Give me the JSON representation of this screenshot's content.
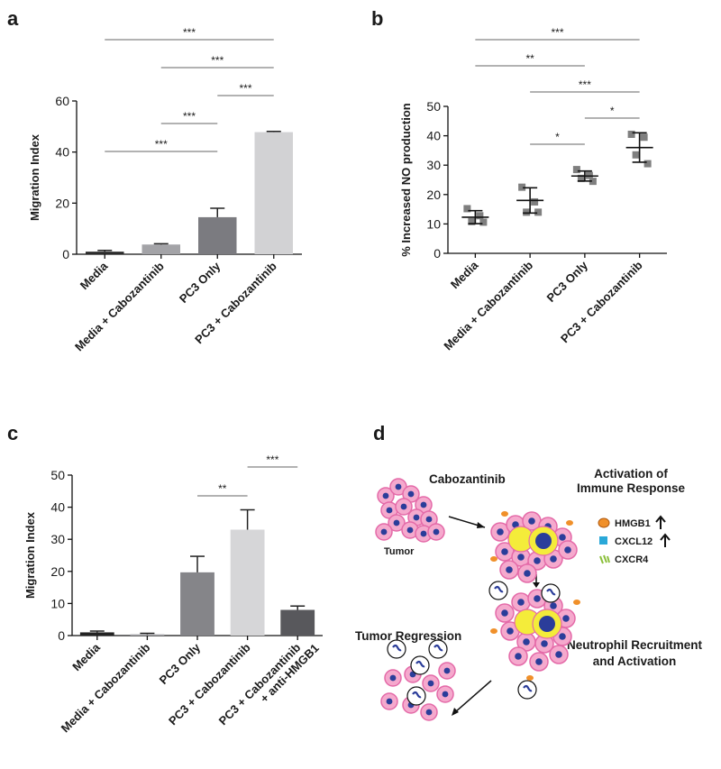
{
  "chart_data": [
    {
      "type": "bar",
      "label": "a",
      "ylabel": "Migration Index",
      "categories": [
        "Media",
        "Media + Cabozantinib",
        "PC3 Only",
        "PC3 + Cabozantinib"
      ],
      "values": [
        1,
        3.8,
        14.5,
        47.8
      ],
      "errors": [
        0.5,
        0.3,
        3.5,
        0.3
      ],
      "colors": [
        "#2b2b2b",
        "#a3a3a7",
        "#7b7b80",
        "#d2d2d4"
      ],
      "ylim": [
        0,
        60
      ],
      "yticks": [
        0,
        20,
        40,
        60
      ],
      "comparisons": [
        {
          "label": "***",
          "groups": [
            0,
            3
          ]
        },
        {
          "label": "***",
          "groups": [
            1,
            3
          ]
        },
        {
          "label": "***",
          "groups": [
            2,
            3
          ]
        },
        {
          "label": "***",
          "groups": [
            1,
            2
          ]
        },
        {
          "label": "***",
          "groups": [
            0,
            2
          ]
        }
      ]
    },
    {
      "type": "dot",
      "label": "b",
      "ylabel": "% Increased NO production",
      "categories": [
        "Media",
        "Media + Cabozantinib",
        "PC3 Only",
        "PC3 + Cabozantinib"
      ],
      "points": [
        [
          15.2,
          12.8,
          10.8,
          10.6
        ],
        [
          22.5,
          17.5,
          14,
          14
        ],
        [
          28.5,
          26.5,
          25.5,
          24.5
        ],
        [
          40.5,
          39.5,
          33.5,
          30.5
        ]
      ],
      "means": [
        12.3,
        18,
        26.3,
        36
      ],
      "sds": [
        2.2,
        4.3,
        1.7,
        5
      ],
      "color": "#7f7f7f",
      "ylim": [
        0,
        50
      ],
      "yticks": [
        0,
        10,
        20,
        30,
        40,
        50
      ],
      "comparisons": [
        {
          "label": "***",
          "groups": [
            0,
            3
          ]
        },
        {
          "label": "**",
          "groups": [
            0,
            2
          ]
        },
        {
          "label": "***",
          "groups": [
            1,
            3
          ]
        },
        {
          "label": "*",
          "groups": [
            2,
            3
          ]
        },
        {
          "label": "*",
          "groups": [
            1,
            2
          ]
        }
      ]
    },
    {
      "type": "bar",
      "label": "c",
      "ylabel": "Migration Index",
      "categories": [
        "Media",
        "Media + Cabozantinib",
        "PC3 Only",
        "PC3 + Cabozantinib",
        [
          "PC3 + Cabozantinib",
          "+ anti-HMGB1"
        ]
      ],
      "values": [
        1,
        0.4,
        19.7,
        33,
        8
      ],
      "errors": [
        0.4,
        0.3,
        5,
        6.2,
        1.2
      ],
      "colors": [
        "#222222",
        "#a8a8ac",
        "#858589",
        "#d6d6d8",
        "#58585c"
      ],
      "ylim": [
        0,
        50
      ],
      "yticks": [
        0,
        10,
        20,
        30,
        40,
        50
      ],
      "comparisons": [
        {
          "label": "***",
          "groups": [
            3,
            4
          ]
        },
        {
          "label": "**",
          "groups": [
            2,
            3
          ]
        }
      ]
    }
  ],
  "diagram": {
    "label": "d",
    "drug": "Cabozantinib",
    "tumor": "Tumor",
    "activation": [
      "Activation of",
      "Immune Response"
    ],
    "legend": [
      "HMGB1",
      "CXCL12",
      "CXCR4"
    ],
    "regression": "Tumor Regression",
    "recruitment": [
      "Neutrophil Recruitment",
      "and Activation"
    ]
  }
}
